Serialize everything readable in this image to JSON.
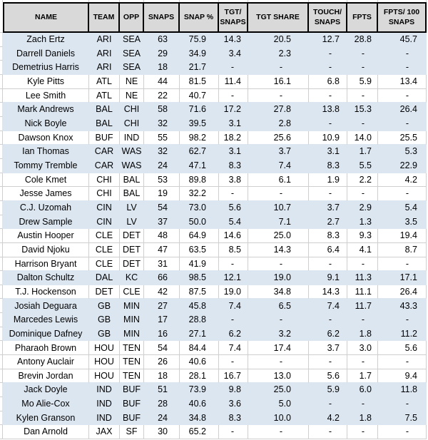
{
  "colors": {
    "header_bg": "#d9d9d9",
    "row_stripe_blue": "#dce6f1",
    "gridline": "#cfcfcf",
    "header_border": "#000000",
    "text": "#000000"
  },
  "table": {
    "columns": [
      {
        "key": "name",
        "label": "NAME"
      },
      {
        "key": "team",
        "label": "TEAM"
      },
      {
        "key": "opp",
        "label": "OPP"
      },
      {
        "key": "snaps",
        "label": "SNAPS"
      },
      {
        "key": "snap_pct",
        "label": "SNAP %"
      },
      {
        "key": "tgt_snaps",
        "label": "TGT/ SNAPS"
      },
      {
        "key": "tgt_share",
        "label": "TGT SHARE"
      },
      {
        "key": "touch_snaps",
        "label": "TOUCH/ SNAPS"
      },
      {
        "key": "fpts",
        "label": "FPTS"
      },
      {
        "key": "fpts_100",
        "label": "FPTS/ 100 SNAPS"
      }
    ],
    "rows": [
      {
        "name": "Zach Ertz",
        "team": "ARI",
        "opp": "SEA",
        "snaps": "63",
        "snap_pct": "75.9",
        "tgt_snaps": "14.3",
        "tgt_share": "20.5",
        "touch_snaps": "12.7",
        "fpts": "28.8",
        "fpts_100": "45.7",
        "highlighted": true
      },
      {
        "name": "Darrell Daniels",
        "team": "ARI",
        "opp": "SEA",
        "snaps": "29",
        "snap_pct": "34.9",
        "tgt_snaps": "3.4",
        "tgt_share": "2.3",
        "touch_snaps": "-",
        "fpts": "-",
        "fpts_100": "-",
        "highlighted": true
      },
      {
        "name": "Demetrius Harris",
        "team": "ARI",
        "opp": "SEA",
        "snaps": "18",
        "snap_pct": "21.7",
        "tgt_snaps": "-",
        "tgt_share": "-",
        "touch_snaps": "-",
        "fpts": "-",
        "fpts_100": "-",
        "highlighted": true
      },
      {
        "name": "Kyle Pitts",
        "team": "ATL",
        "opp": "NE",
        "snaps": "44",
        "snap_pct": "81.5",
        "tgt_snaps": "11.4",
        "tgt_share": "16.1",
        "touch_snaps": "6.8",
        "fpts": "5.9",
        "fpts_100": "13.4",
        "highlighted": false
      },
      {
        "name": "Lee Smith",
        "team": "ATL",
        "opp": "NE",
        "snaps": "22",
        "snap_pct": "40.7",
        "tgt_snaps": "-",
        "tgt_share": "-",
        "touch_snaps": "-",
        "fpts": "-",
        "fpts_100": "-",
        "highlighted": false
      },
      {
        "name": "Mark Andrews",
        "team": "BAL",
        "opp": "CHI",
        "snaps": "58",
        "snap_pct": "71.6",
        "tgt_snaps": "17.2",
        "tgt_share": "27.8",
        "touch_snaps": "13.8",
        "fpts": "15.3",
        "fpts_100": "26.4",
        "highlighted": true
      },
      {
        "name": "Nick Boyle",
        "team": "BAL",
        "opp": "CHI",
        "snaps": "32",
        "snap_pct": "39.5",
        "tgt_snaps": "3.1",
        "tgt_share": "2.8",
        "touch_snaps": "-",
        "fpts": "-",
        "fpts_100": "-",
        "highlighted": true
      },
      {
        "name": "Dawson Knox",
        "team": "BUF",
        "opp": "IND",
        "snaps": "55",
        "snap_pct": "98.2",
        "tgt_snaps": "18.2",
        "tgt_share": "25.6",
        "touch_snaps": "10.9",
        "fpts": "14.0",
        "fpts_100": "25.5",
        "highlighted": false
      },
      {
        "name": "Ian Thomas",
        "team": "CAR",
        "opp": "WAS",
        "snaps": "32",
        "snap_pct": "62.7",
        "tgt_snaps": "3.1",
        "tgt_share": "3.7",
        "touch_snaps": "3.1",
        "fpts": "1.7",
        "fpts_100": "5.3",
        "highlighted": true
      },
      {
        "name": "Tommy Tremble",
        "team": "CAR",
        "opp": "WAS",
        "snaps": "24",
        "snap_pct": "47.1",
        "tgt_snaps": "8.3",
        "tgt_share": "7.4",
        "touch_snaps": "8.3",
        "fpts": "5.5",
        "fpts_100": "22.9",
        "highlighted": true
      },
      {
        "name": "Cole Kmet",
        "team": "CHI",
        "opp": "BAL",
        "snaps": "53",
        "snap_pct": "89.8",
        "tgt_snaps": "3.8",
        "tgt_share": "6.1",
        "touch_snaps": "1.9",
        "fpts": "2.2",
        "fpts_100": "4.2",
        "highlighted": false
      },
      {
        "name": "Jesse James",
        "team": "CHI",
        "opp": "BAL",
        "snaps": "19",
        "snap_pct": "32.2",
        "tgt_snaps": "-",
        "tgt_share": "-",
        "touch_snaps": "-",
        "fpts": "-",
        "fpts_100": "-",
        "highlighted": false
      },
      {
        "name": "C.J. Uzomah",
        "team": "CIN",
        "opp": "LV",
        "snaps": "54",
        "snap_pct": "73.0",
        "tgt_snaps": "5.6",
        "tgt_share": "10.7",
        "touch_snaps": "3.7",
        "fpts": "2.9",
        "fpts_100": "5.4",
        "highlighted": true
      },
      {
        "name": "Drew Sample",
        "team": "CIN",
        "opp": "LV",
        "snaps": "37",
        "snap_pct": "50.0",
        "tgt_snaps": "5.4",
        "tgt_share": "7.1",
        "touch_snaps": "2.7",
        "fpts": "1.3",
        "fpts_100": "3.5",
        "highlighted": true
      },
      {
        "name": "Austin Hooper",
        "team": "CLE",
        "opp": "DET",
        "snaps": "48",
        "snap_pct": "64.9",
        "tgt_snaps": "14.6",
        "tgt_share": "25.0",
        "touch_snaps": "8.3",
        "fpts": "9.3",
        "fpts_100": "19.4",
        "highlighted": false
      },
      {
        "name": "David Njoku",
        "team": "CLE",
        "opp": "DET",
        "snaps": "47",
        "snap_pct": "63.5",
        "tgt_snaps": "8.5",
        "tgt_share": "14.3",
        "touch_snaps": "6.4",
        "fpts": "4.1",
        "fpts_100": "8.7",
        "highlighted": false
      },
      {
        "name": "Harrison Bryant",
        "team": "CLE",
        "opp": "DET",
        "snaps": "31",
        "snap_pct": "41.9",
        "tgt_snaps": "-",
        "tgt_share": "-",
        "touch_snaps": "-",
        "fpts": "-",
        "fpts_100": "-",
        "highlighted": false
      },
      {
        "name": "Dalton Schultz",
        "team": "DAL",
        "opp": "KC",
        "snaps": "66",
        "snap_pct": "98.5",
        "tgt_snaps": "12.1",
        "tgt_share": "19.0",
        "touch_snaps": "9.1",
        "fpts": "11.3",
        "fpts_100": "17.1",
        "highlighted": true
      },
      {
        "name": "T.J. Hockenson",
        "team": "DET",
        "opp": "CLE",
        "snaps": "42",
        "snap_pct": "87.5",
        "tgt_snaps": "19.0",
        "tgt_share": "34.8",
        "touch_snaps": "14.3",
        "fpts": "11.1",
        "fpts_100": "26.4",
        "highlighted": false
      },
      {
        "name": "Josiah Deguara",
        "team": "GB",
        "opp": "MIN",
        "snaps": "27",
        "snap_pct": "45.8",
        "tgt_snaps": "7.4",
        "tgt_share": "6.5",
        "touch_snaps": "7.4",
        "fpts": "11.7",
        "fpts_100": "43.3",
        "highlighted": true
      },
      {
        "name": "Marcedes Lewis",
        "team": "GB",
        "opp": "MIN",
        "snaps": "17",
        "snap_pct": "28.8",
        "tgt_snaps": "-",
        "tgt_share": "-",
        "touch_snaps": "-",
        "fpts": "-",
        "fpts_100": "-",
        "highlighted": true
      },
      {
        "name": "Dominique Dafney",
        "team": "GB",
        "opp": "MIN",
        "snaps": "16",
        "snap_pct": "27.1",
        "tgt_snaps": "6.2",
        "tgt_share": "3.2",
        "touch_snaps": "6.2",
        "fpts": "1.8",
        "fpts_100": "11.2",
        "highlighted": true
      },
      {
        "name": "Pharaoh Brown",
        "team": "HOU",
        "opp": "TEN",
        "snaps": "54",
        "snap_pct": "84.4",
        "tgt_snaps": "7.4",
        "tgt_share": "17.4",
        "touch_snaps": "3.7",
        "fpts": "3.0",
        "fpts_100": "5.6",
        "highlighted": false
      },
      {
        "name": "Antony Auclair",
        "team": "HOU",
        "opp": "TEN",
        "snaps": "26",
        "snap_pct": "40.6",
        "tgt_snaps": "-",
        "tgt_share": "-",
        "touch_snaps": "-",
        "fpts": "-",
        "fpts_100": "-",
        "highlighted": false
      },
      {
        "name": "Brevin Jordan",
        "team": "HOU",
        "opp": "TEN",
        "snaps": "18",
        "snap_pct": "28.1",
        "tgt_snaps": "16.7",
        "tgt_share": "13.0",
        "touch_snaps": "5.6",
        "fpts": "1.7",
        "fpts_100": "9.4",
        "highlighted": false
      },
      {
        "name": "Jack Doyle",
        "team": "IND",
        "opp": "BUF",
        "snaps": "51",
        "snap_pct": "73.9",
        "tgt_snaps": "9.8",
        "tgt_share": "25.0",
        "touch_snaps": "5.9",
        "fpts": "6.0",
        "fpts_100": "11.8",
        "highlighted": true
      },
      {
        "name": "Mo Alie-Cox",
        "team": "IND",
        "opp": "BUF",
        "snaps": "28",
        "snap_pct": "40.6",
        "tgt_snaps": "3.6",
        "tgt_share": "5.0",
        "touch_snaps": "-",
        "fpts": "-",
        "fpts_100": "-",
        "highlighted": true
      },
      {
        "name": "Kylen Granson",
        "team": "IND",
        "opp": "BUF",
        "snaps": "24",
        "snap_pct": "34.8",
        "tgt_snaps": "8.3",
        "tgt_share": "10.0",
        "touch_snaps": "4.2",
        "fpts": "1.8",
        "fpts_100": "7.5",
        "highlighted": true
      },
      {
        "name": "Dan Arnold",
        "team": "JAX",
        "opp": "SF",
        "snaps": "30",
        "snap_pct": "65.2",
        "tgt_snaps": "-",
        "tgt_share": "-",
        "touch_snaps": "-",
        "fpts": "-",
        "fpts_100": "-",
        "highlighted": false
      }
    ]
  }
}
